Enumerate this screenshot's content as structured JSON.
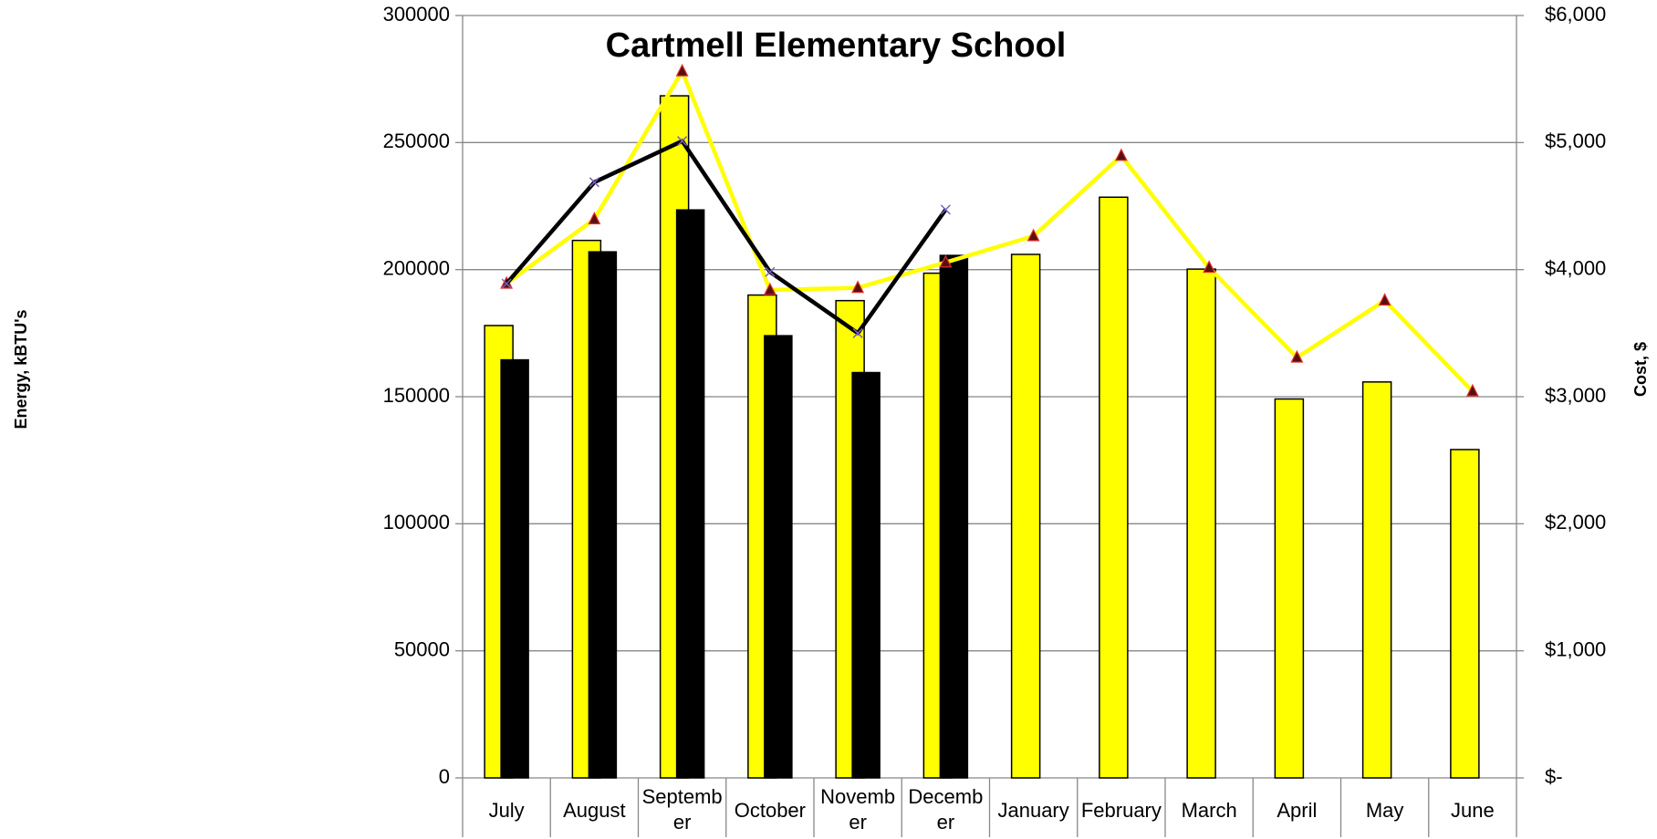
{
  "chart_data": {
    "type": "bar_line",
    "title": "Cartmell Elementary School",
    "y_label": "Energy, kBTU's",
    "y2_label": "Cost, $",
    "categories": [
      "July",
      "August",
      "September",
      "October",
      "November",
      "December",
      "January",
      "February",
      "March",
      "April",
      "May",
      "June"
    ],
    "ylim": [
      0,
      300000
    ],
    "yticks": [
      0,
      50000,
      100000,
      150000,
      200000,
      250000,
      300000
    ],
    "y2lim": [
      0,
      6000
    ],
    "y2ticks": [
      {
        "value": 0,
        "label": "$-"
      },
      {
        "value": 1000,
        "label": "$1,000"
      },
      {
        "value": 2000,
        "label": "$2,000"
      },
      {
        "value": 3000,
        "label": "$3,000"
      },
      {
        "value": 4000,
        "label": "$4,000"
      },
      {
        "value": 5000,
        "label": "$5,000"
      },
      {
        "value": 6000,
        "label": "$6,000"
      }
    ],
    "grid": true,
    "series": [
      {
        "kind": "bar",
        "color": "#ffff00",
        "values": [
          178000,
          211500,
          268400,
          190000,
          187800,
          198600,
          206000,
          228500,
          200200,
          149100,
          155800,
          129200
        ]
      },
      {
        "kind": "bar",
        "color": "#000000",
        "values": [
          164500,
          207000,
          223500,
          174000,
          159500,
          205600,
          null,
          null,
          null,
          null,
          null,
          null
        ]
      },
      {
        "kind": "line",
        "axis": "y2",
        "color": "#ffff00",
        "marker": "triangle",
        "values": [
          3890,
          4397,
          5561,
          3840,
          3857,
          4057,
          4264,
          4896,
          4015,
          3308,
          3757,
          3042
        ]
      },
      {
        "kind": "line",
        "axis": "y2",
        "color": "#000000",
        "marker": "x",
        "values": [
          3890,
          4688,
          5012,
          3982,
          3500,
          4472,
          null,
          null,
          null,
          null,
          null,
          null
        ]
      }
    ]
  }
}
